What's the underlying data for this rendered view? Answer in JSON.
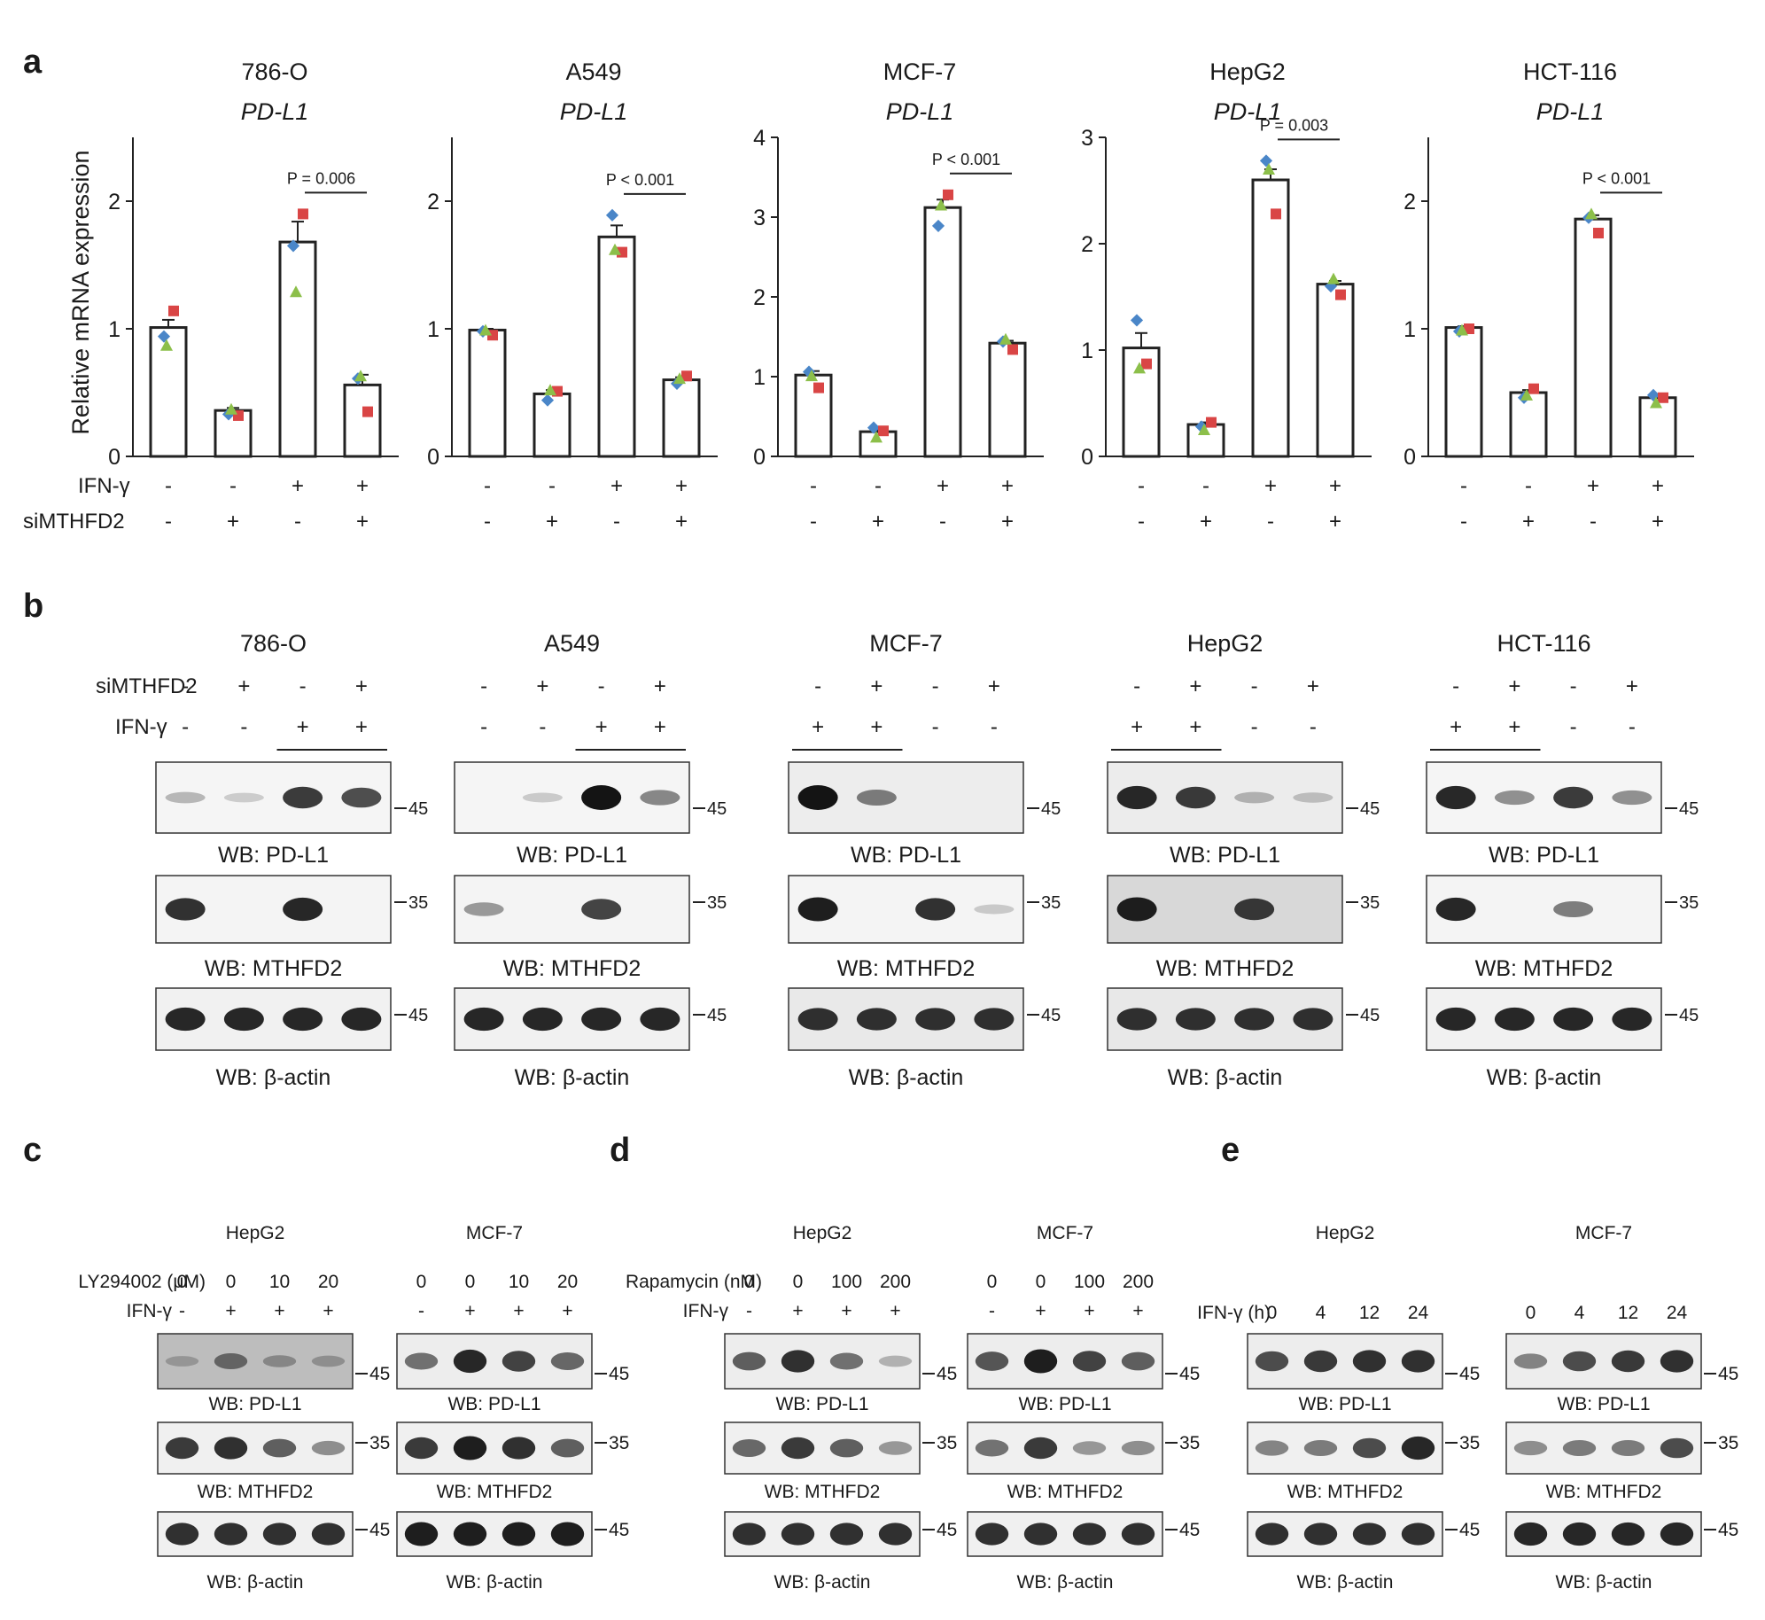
{
  "figure": {
    "panel_labels": {
      "a": "a",
      "b": "b",
      "c": "c",
      "d": "d",
      "e": "e"
    },
    "colors": {
      "rep1": "#4a86c8",
      "rep2": "#d94545",
      "rep3": "#8cbf4a"
    }
  },
  "panel_a": {
    "y_axis_label": "Relative mRNA expression",
    "row_labels": {
      "ifn": "IFN-γ",
      "si": "siMTHFD2"
    },
    "ifn_signs": [
      "-",
      "-",
      "+",
      "+"
    ],
    "si_signs": [
      "-",
      "+",
      "-",
      "+"
    ]
  },
  "chart_data": [
    {
      "type": "bar",
      "title": "786-O",
      "subtitle": "PD-L1",
      "ylabel": "Relative mRNA expression",
      "categories": [
        "IFN-γ -/siMTHFD2 -",
        "IFN-γ -/siMTHFD2 +",
        "IFN-γ +/siMTHFD2 -",
        "IFN-γ +/siMTHFD2 +"
      ],
      "ylim": [
        0,
        2.5
      ],
      "yticks": [
        0,
        1,
        2
      ],
      "values": [
        1.01,
        0.36,
        1.68,
        0.56
      ],
      "errors": [
        0.06,
        0.02,
        0.16,
        0.08
      ],
      "points": [
        [
          0.94,
          1.14,
          0.87
        ],
        [
          0.33,
          0.32,
          0.37
        ],
        [
          1.65,
          1.9,
          1.29
        ],
        [
          0.61,
          0.35,
          0.63
        ]
      ],
      "annotation": {
        "text": "P = 0.006",
        "between": [
          2,
          3
        ]
      }
    },
    {
      "type": "bar",
      "title": "A549",
      "subtitle": "PD-L1",
      "ylabel": "Relative mRNA expression",
      "categories": [
        "IFN-γ -/siMTHFD2 -",
        "IFN-γ -/siMTHFD2 +",
        "IFN-γ +/siMTHFD2 -",
        "IFN-γ +/siMTHFD2 +"
      ],
      "ylim": [
        0,
        2.5
      ],
      "yticks": [
        0,
        1,
        2
      ],
      "values": [
        0.99,
        0.49,
        1.72,
        0.6
      ],
      "errors": [
        0.01,
        0.03,
        0.09,
        0.02
      ],
      "points": [
        [
          0.98,
          0.95,
          0.99
        ],
        [
          0.44,
          0.51,
          0.52
        ],
        [
          1.89,
          1.6,
          1.62
        ],
        [
          0.57,
          0.63,
          0.61
        ]
      ],
      "annotation": {
        "text": "P < 0.001",
        "between": [
          2,
          3
        ]
      }
    },
    {
      "type": "bar",
      "title": "MCF-7",
      "subtitle": "PD-L1",
      "ylabel": "Relative mRNA expression",
      "categories": [
        "IFN-γ -/siMTHFD2 -",
        "IFN-γ -/siMTHFD2 +",
        "IFN-γ +/siMTHFD2 -",
        "IFN-γ +/siMTHFD2 +"
      ],
      "ylim": [
        0,
        4
      ],
      "yticks": [
        0,
        1,
        2,
        3,
        4
      ],
      "values": [
        1.02,
        0.31,
        3.12,
        1.42
      ],
      "errors": [
        0.05,
        0.04,
        0.1,
        0.03
      ],
      "points": [
        [
          1.06,
          0.86,
          1.01
        ],
        [
          0.36,
          0.32,
          0.24
        ],
        [
          2.89,
          3.28,
          3.15
        ],
        [
          1.44,
          1.34,
          1.47
        ]
      ],
      "annotation": {
        "text": "P < 0.001",
        "between": [
          2,
          3
        ]
      }
    },
    {
      "type": "bar",
      "title": "HepG2",
      "subtitle": "PD-L1",
      "ylabel": "Relative mRNA expression",
      "categories": [
        "IFN-γ -/siMTHFD2 -",
        "IFN-γ -/siMTHFD2 +",
        "IFN-γ +/siMTHFD2 -",
        "IFN-γ +/siMTHFD2 +"
      ],
      "ylim": [
        0,
        3
      ],
      "yticks": [
        0,
        1,
        2,
        3
      ],
      "values": [
        1.02,
        0.3,
        2.6,
        1.62
      ],
      "errors": [
        0.14,
        0.02,
        0.1,
        0.03
      ],
      "points": [
        [
          1.28,
          0.87,
          0.83
        ],
        [
          0.28,
          0.32,
          0.25
        ],
        [
          2.78,
          2.28,
          2.7
        ],
        [
          1.6,
          1.52,
          1.67
        ]
      ],
      "annotation": {
        "text": "P = 0.003",
        "between": [
          2,
          3
        ]
      }
    },
    {
      "type": "bar",
      "title": "HCT-116",
      "subtitle": "PD-L1",
      "ylabel": "Relative mRNA expression",
      "categories": [
        "IFN-γ -/siMTHFD2 -",
        "IFN-γ -/siMTHFD2 +",
        "IFN-γ +/siMTHFD2 -",
        "IFN-γ +/siMTHFD2 +"
      ],
      "ylim": [
        0,
        2.5
      ],
      "yticks": [
        0,
        1,
        2
      ],
      "values": [
        1.01,
        0.5,
        1.86,
        0.46
      ],
      "errors": [
        0.01,
        0.02,
        0.03,
        0.02
      ],
      "points": [
        [
          0.98,
          1.0,
          0.99
        ],
        [
          0.46,
          0.53,
          0.48
        ],
        [
          1.87,
          1.75,
          1.9
        ],
        [
          0.48,
          0.46,
          0.42
        ]
      ],
      "annotation": {
        "text": "P < 0.001",
        "between": [
          2,
          3
        ]
      }
    }
  ],
  "panel_b": {
    "row_labels": {
      "si": "siMTHFD2",
      "ifn": "IFN-γ"
    },
    "wb_labels": {
      "pdl1": "WB: PD-L1",
      "mthfd2": "WB: MTHFD2",
      "actin": "WB: β-actin"
    },
    "groups": [
      {
        "title": "786-O",
        "si_signs": [
          "-",
          "+",
          "-",
          "+"
        ],
        "ifn_signs": [
          "-",
          "-",
          "+",
          "+"
        ],
        "mw": {
          "pdl1": "45",
          "mthfd2": "35",
          "actin": "45"
        },
        "pdl1": [
          0.15,
          0.04,
          0.8,
          0.7
        ],
        "mthfd2": [
          0.85,
          0.0,
          0.9,
          0.0
        ],
        "actin": [
          0.9,
          0.9,
          0.9,
          0.9
        ]
      },
      {
        "title": "A549",
        "si_signs": [
          "-",
          "+",
          "-",
          "+"
        ],
        "ifn_signs": [
          "-",
          "-",
          "+",
          "+"
        ],
        "mw": {
          "pdl1": "45",
          "mthfd2": "35",
          "actin": "45"
        },
        "pdl1": [
          0.0,
          0.05,
          1.0,
          0.4
        ],
        "mthfd2": [
          0.3,
          0.0,
          0.75,
          0.0
        ],
        "actin": [
          0.9,
          0.9,
          0.9,
          0.9
        ]
      },
      {
        "title": "MCF-7",
        "si_signs": [
          "-",
          "+",
          "-",
          "+"
        ],
        "ifn_signs": [
          "+",
          "+",
          "-",
          "-"
        ],
        "mw": {
          "pdl1": "45",
          "mthfd2": "35",
          "actin": "45"
        },
        "pdl1": [
          1.0,
          0.45,
          0.0,
          0.0
        ],
        "mthfd2": [
          0.95,
          0.0,
          0.85,
          0.05
        ],
        "actin": [
          0.85,
          0.85,
          0.85,
          0.85
        ]
      },
      {
        "title": "HepG2",
        "si_signs": [
          "-",
          "+",
          "-",
          "+"
        ],
        "ifn_signs": [
          "+",
          "+",
          "-",
          "-"
        ],
        "mw": {
          "pdl1": "45",
          "mthfd2": "35",
          "actin": "45"
        },
        "pdl1": [
          0.9,
          0.8,
          0.15,
          0.08
        ],
        "mthfd2": [
          0.95,
          0.0,
          0.8,
          0.0
        ],
        "actin": [
          0.85,
          0.85,
          0.85,
          0.85
        ]
      },
      {
        "title": "HCT-116",
        "si_signs": [
          "-",
          "+",
          "-",
          "+"
        ],
        "ifn_signs": [
          "+",
          "+",
          "-",
          "-"
        ],
        "mw": {
          "pdl1": "45",
          "mthfd2": "35",
          "actin": "45"
        },
        "pdl1": [
          0.9,
          0.35,
          0.8,
          0.35
        ],
        "mthfd2": [
          0.9,
          0.0,
          0.45,
          0.0
        ],
        "actin": [
          0.9,
          0.9,
          0.9,
          0.9
        ]
      }
    ]
  },
  "panel_cde": {
    "wb_labels": {
      "pdl1": "WB: PD-L1",
      "mthfd2": "WB: MTHFD2",
      "actin": "WB: β-actin"
    },
    "c": {
      "row1_label": "LY294002 (μM)",
      "row2_label": "IFN-γ",
      "groups": [
        {
          "title": "HepG2",
          "row1": [
            "0",
            "0",
            "10",
            "20"
          ],
          "row2": [
            "-",
            "+",
            "+",
            "+"
          ],
          "mw": {
            "pdl1": "45",
            "mthfd2": "35",
            "actin": "45"
          },
          "pdl1": [
            0.1,
            0.45,
            0.2,
            0.15
          ],
          "mthfd2": [
            0.8,
            0.85,
            0.6,
            0.35
          ],
          "actin": [
            0.85,
            0.85,
            0.85,
            0.85
          ]
        },
        {
          "title": "MCF-7",
          "row1": [
            "0",
            "0",
            "10",
            "20"
          ],
          "row2": [
            "-",
            "+",
            "+",
            "+"
          ],
          "mw": {
            "pdl1": "45",
            "mthfd2": "35",
            "actin": "45"
          },
          "pdl1": [
            0.5,
            0.9,
            0.75,
            0.55
          ],
          "mthfd2": [
            0.8,
            0.95,
            0.85,
            0.6
          ],
          "actin": [
            0.95,
            0.95,
            0.95,
            0.95
          ]
        }
      ]
    },
    "d": {
      "row1_label": "Rapamycin (nM)",
      "row2_label": "IFN-γ",
      "groups": [
        {
          "title": "HepG2",
          "row1": [
            "0",
            "0",
            "100",
            "200"
          ],
          "row2": [
            "-",
            "+",
            "+",
            "+"
          ],
          "mw": {
            "pdl1": "45",
            "mthfd2": "35",
            "actin": "45"
          },
          "pdl1": [
            0.6,
            0.85,
            0.5,
            0.15
          ],
          "mthfd2": [
            0.55,
            0.8,
            0.6,
            0.3
          ],
          "actin": [
            0.85,
            0.85,
            0.85,
            0.85
          ]
        },
        {
          "title": "MCF-7",
          "row1": [
            "0",
            "0",
            "100",
            "200"
          ],
          "row2": [
            "-",
            "+",
            "+",
            "+"
          ],
          "mw": {
            "pdl1": "45",
            "mthfd2": "35",
            "actin": "45"
          },
          "pdl1": [
            0.65,
            0.95,
            0.75,
            0.6
          ],
          "mthfd2": [
            0.5,
            0.8,
            0.3,
            0.35
          ],
          "actin": [
            0.85,
            0.85,
            0.85,
            0.85
          ]
        }
      ]
    },
    "e": {
      "row1_label": "IFN-γ (h)",
      "groups": [
        {
          "title": "HepG2",
          "row1": [
            "0",
            "4",
            "12",
            "24"
          ],
          "mw": {
            "pdl1": "45",
            "mthfd2": "35",
            "actin": "45"
          },
          "pdl1": [
            0.7,
            0.8,
            0.85,
            0.85
          ],
          "mthfd2": [
            0.4,
            0.45,
            0.7,
            0.9
          ],
          "actin": [
            0.85,
            0.85,
            0.85,
            0.85
          ]
        },
        {
          "title": "MCF-7",
          "row1": [
            "0",
            "4",
            "12",
            "24"
          ],
          "mw": {
            "pdl1": "45",
            "mthfd2": "35",
            "actin": "45"
          },
          "pdl1": [
            0.4,
            0.7,
            0.8,
            0.85
          ],
          "mthfd2": [
            0.35,
            0.45,
            0.45,
            0.7
          ],
          "actin": [
            0.9,
            0.9,
            0.9,
            0.9
          ]
        }
      ]
    }
  }
}
